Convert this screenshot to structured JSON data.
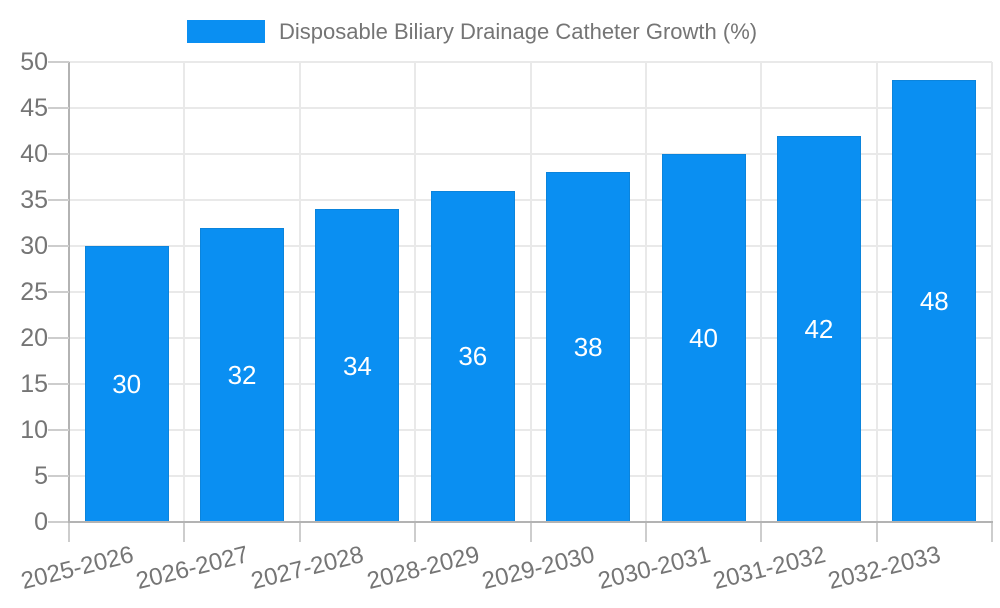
{
  "chart_data": {
    "type": "bar",
    "title": "Disposable Biliary Drainage Catheter Growth (%)",
    "legend": {
      "position": "top",
      "entries": [
        "Disposable Biliary Drainage Catheter Growth (%)"
      ]
    },
    "categories": [
      "2025-2026",
      "2026-2027",
      "2027-2028",
      "2028-2029",
      "2029-2030",
      "2030-2031",
      "2031-2032",
      "2032-2033"
    ],
    "values": [
      30,
      32,
      34,
      36,
      38,
      40,
      42,
      48
    ],
    "bar_labels": [
      "30",
      "32",
      "34",
      "36",
      "38",
      "40",
      "42",
      "48"
    ],
    "xlabel": "",
    "ylabel": "",
    "ylim": [
      0,
      50
    ],
    "ytick_step": 5,
    "yticks": [
      0,
      5,
      10,
      15,
      20,
      25,
      30,
      35,
      40,
      45,
      50
    ],
    "grid": true,
    "colors": {
      "bar_fill": "#0a8ff2",
      "bar_border": "#0b84dc",
      "bar_label_text": "#ffffff",
      "axis_text": "#757575",
      "legend_text": "#757575",
      "gridline": "#e9e9e9",
      "tick": "#cdcdcd",
      "axis_line": "#b3b3b3",
      "background": "#ffffff"
    }
  }
}
